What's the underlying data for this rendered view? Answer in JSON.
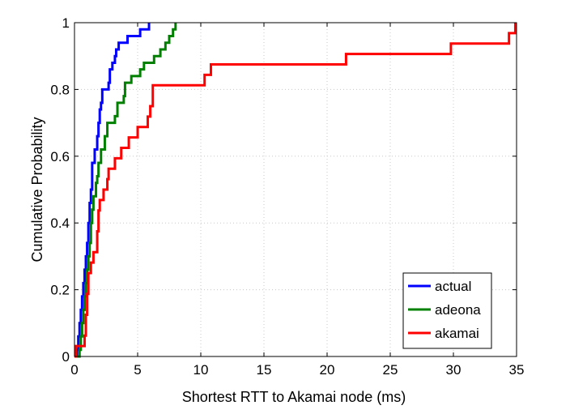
{
  "chart_data": {
    "type": "line",
    "step": true,
    "title": "",
    "xlabel": "Shortest RTT to Akamai node (ms)",
    "ylabel": "Cumulative Probability",
    "xlim": [
      0,
      35
    ],
    "ylim": [
      0,
      1
    ],
    "xticks": [
      "0",
      "5",
      "10",
      "15",
      "20",
      "25",
      "30",
      "35"
    ],
    "yticks": [
      "0",
      "0.2",
      "0.4",
      "0.6",
      "0.8",
      "1"
    ],
    "grid": true,
    "legend_position": "bottom-right",
    "series": [
      {
        "name": "actual",
        "color": "#0000ff",
        "points": [
          [
            0,
            0
          ],
          [
            0.2,
            0.02
          ],
          [
            0.3,
            0.06
          ],
          [
            0.4,
            0.1
          ],
          [
            0.5,
            0.14
          ],
          [
            0.6,
            0.18
          ],
          [
            0.7,
            0.22
          ],
          [
            0.8,
            0.26
          ],
          [
            0.9,
            0.3
          ],
          [
            1.0,
            0.34
          ],
          [
            1.1,
            0.4
          ],
          [
            1.2,
            0.46
          ],
          [
            1.3,
            0.5
          ],
          [
            1.4,
            0.58
          ],
          [
            1.6,
            0.62
          ],
          [
            1.8,
            0.66
          ],
          [
            1.9,
            0.7
          ],
          [
            2.0,
            0.74
          ],
          [
            2.1,
            0.76
          ],
          [
            2.2,
            0.8
          ],
          [
            2.7,
            0.82
          ],
          [
            2.8,
            0.86
          ],
          [
            3.0,
            0.88
          ],
          [
            3.2,
            0.9
          ],
          [
            3.3,
            0.92
          ],
          [
            3.5,
            0.94
          ],
          [
            4.2,
            0.96
          ],
          [
            5.2,
            0.98
          ],
          [
            5.9,
            1.0
          ]
        ]
      },
      {
        "name": "adeona",
        "color": "#008000",
        "points": [
          [
            0,
            0
          ],
          [
            0.4,
            0.02
          ],
          [
            0.5,
            0.06
          ],
          [
            0.6,
            0.1
          ],
          [
            0.7,
            0.14
          ],
          [
            0.8,
            0.18
          ],
          [
            0.9,
            0.22
          ],
          [
            1.0,
            0.26
          ],
          [
            1.1,
            0.3
          ],
          [
            1.2,
            0.34
          ],
          [
            1.3,
            0.4
          ],
          [
            1.4,
            0.44
          ],
          [
            1.5,
            0.48
          ],
          [
            1.7,
            0.52
          ],
          [
            1.8,
            0.54
          ],
          [
            1.9,
            0.58
          ],
          [
            2.1,
            0.62
          ],
          [
            2.4,
            0.66
          ],
          [
            2.6,
            0.7
          ],
          [
            3.2,
            0.72
          ],
          [
            3.4,
            0.76
          ],
          [
            3.9,
            0.78
          ],
          [
            4.0,
            0.82
          ],
          [
            4.5,
            0.84
          ],
          [
            5.2,
            0.86
          ],
          [
            5.5,
            0.88
          ],
          [
            6.3,
            0.9
          ],
          [
            6.8,
            0.92
          ],
          [
            7.2,
            0.94
          ],
          [
            7.5,
            0.96
          ],
          [
            7.8,
            0.98
          ],
          [
            8.0,
            1.0
          ]
        ]
      },
      {
        "name": "akamai",
        "color": "#ff0000",
        "points": [
          [
            0,
            0
          ],
          [
            0.1,
            0.03125
          ],
          [
            0.8,
            0.0625
          ],
          [
            0.9,
            0.125
          ],
          [
            1.0,
            0.1875
          ],
          [
            1.1,
            0.25
          ],
          [
            1.3,
            0.28125
          ],
          [
            1.5,
            0.3125
          ],
          [
            1.8,
            0.375
          ],
          [
            1.9,
            0.4375
          ],
          [
            2.0,
            0.46875
          ],
          [
            2.3,
            0.5
          ],
          [
            2.6,
            0.53125
          ],
          [
            2.7,
            0.5625
          ],
          [
            3.2,
            0.59375
          ],
          [
            3.7,
            0.625
          ],
          [
            4.3,
            0.65625
          ],
          [
            5.0,
            0.6875
          ],
          [
            5.8,
            0.71875
          ],
          [
            6.0,
            0.75
          ],
          [
            6.2,
            0.8125
          ],
          [
            10.3,
            0.84375
          ],
          [
            10.8,
            0.875
          ],
          [
            21.5,
            0.90625
          ],
          [
            29.8,
            0.9375
          ],
          [
            34.4,
            0.96875
          ],
          [
            34.9,
            1.0
          ]
        ]
      }
    ]
  }
}
